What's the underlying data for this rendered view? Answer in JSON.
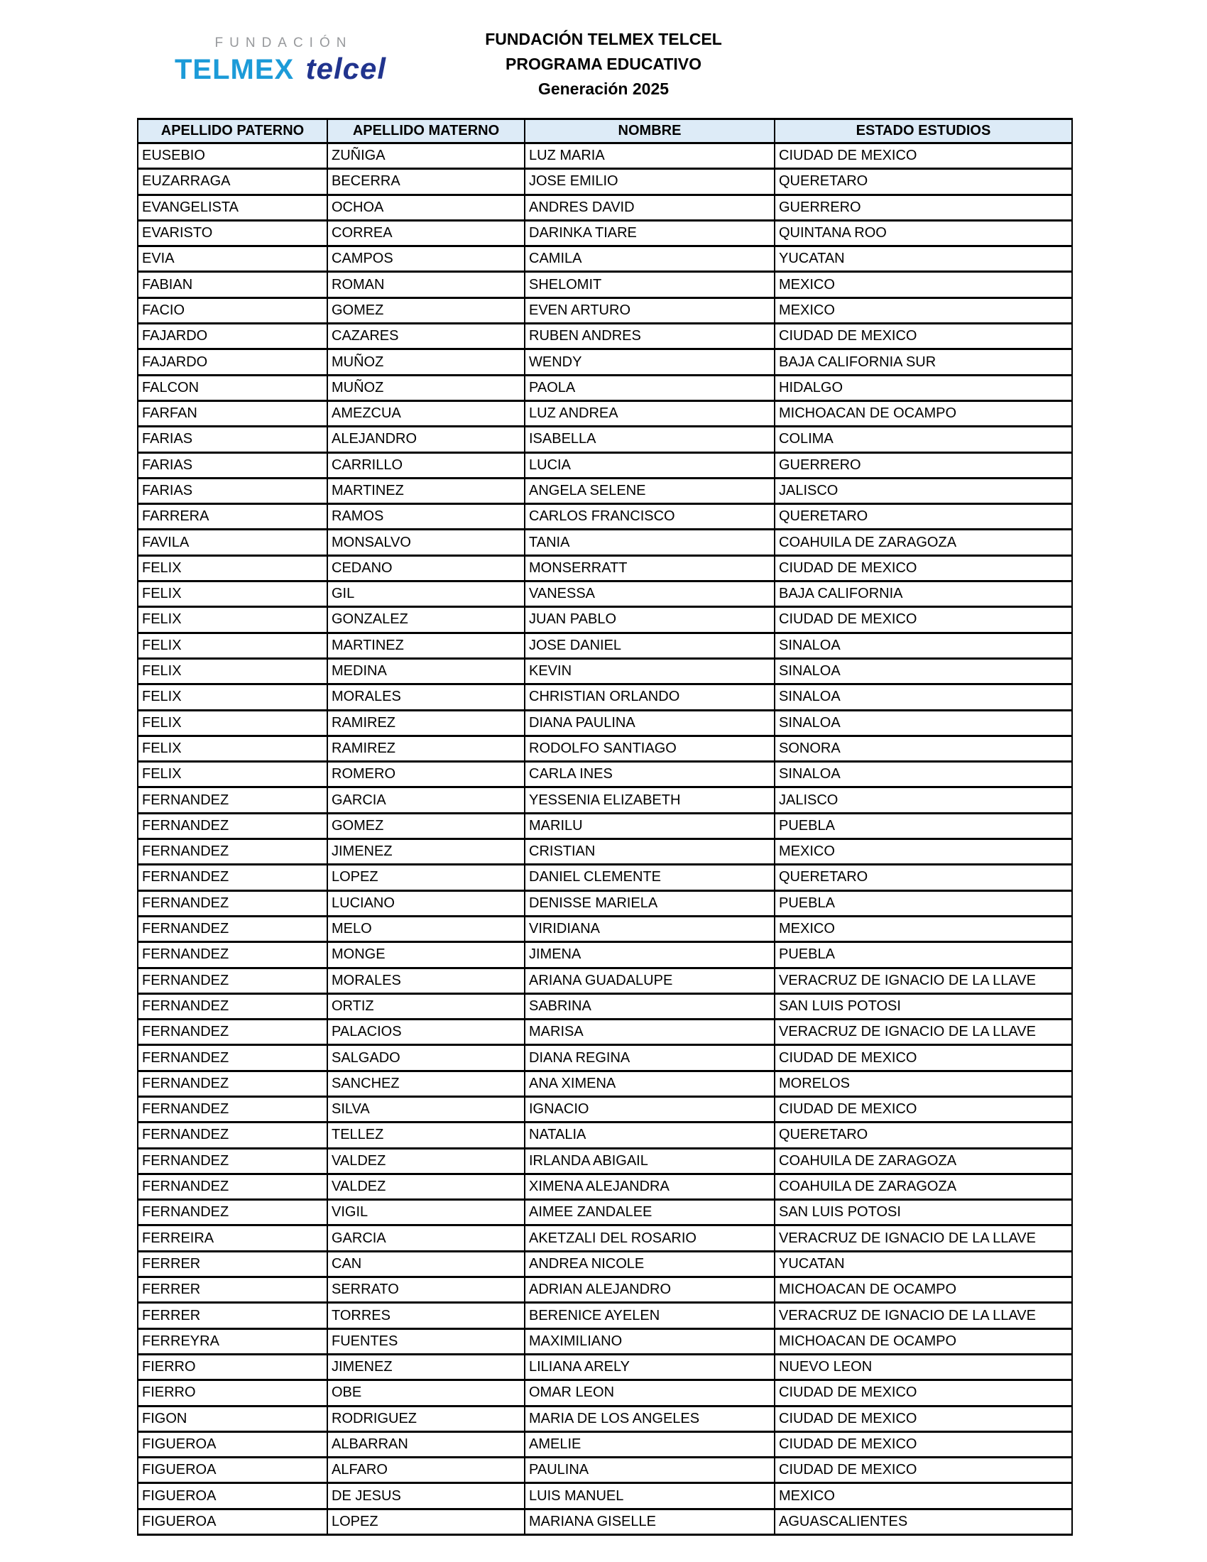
{
  "logo": {
    "fundacion": "FUNDACIÓN",
    "telmex": "TELMEX",
    "telcel": "telcel"
  },
  "titles": {
    "line1": "FUNDACIÓN TELMEX TELCEL",
    "line2": "PROGRAMA EDUCATIVO",
    "line3": "Generación 2025"
  },
  "colors": {
    "header_bg": "#ddebf7",
    "border": "#000000",
    "telmex_blue": "#1c9bd8",
    "telcel_blue": "#21348e",
    "fundacion_gray": "#97999c"
  },
  "table": {
    "columns": [
      "APELLIDO PATERNO",
      "APELLIDO MATERNO",
      "NOMBRE",
      "ESTADO ESTUDIOS"
    ],
    "rows": [
      [
        "EUSEBIO",
        "ZUÑIGA",
        "LUZ MARIA",
        "CIUDAD DE MEXICO"
      ],
      [
        "EUZARRAGA",
        "BECERRA",
        "JOSE EMILIO",
        "QUERETARO"
      ],
      [
        "EVANGELISTA",
        "OCHOA",
        "ANDRES DAVID",
        "GUERRERO"
      ],
      [
        "EVARISTO",
        "CORREA",
        "DARINKA TIARE",
        "QUINTANA ROO"
      ],
      [
        "EVIA",
        "CAMPOS",
        "CAMILA",
        "YUCATAN"
      ],
      [
        "FABIAN",
        "ROMAN",
        "SHELOMIT",
        "MEXICO"
      ],
      [
        "FACIO",
        "GOMEZ",
        "EVEN ARTURO",
        "MEXICO"
      ],
      [
        "FAJARDO",
        "CAZARES",
        "RUBEN ANDRES",
        "CIUDAD DE MEXICO"
      ],
      [
        "FAJARDO",
        "MUÑOZ",
        "WENDY",
        "BAJA CALIFORNIA SUR"
      ],
      [
        "FALCON",
        "MUÑOZ",
        "PAOLA",
        "HIDALGO"
      ],
      [
        "FARFAN",
        "AMEZCUA",
        "LUZ ANDREA",
        "MICHOACAN DE OCAMPO"
      ],
      [
        "FARIAS",
        "ALEJANDRO",
        "ISABELLA",
        "COLIMA"
      ],
      [
        "FARIAS",
        "CARRILLO",
        "LUCIA",
        "GUERRERO"
      ],
      [
        "FARIAS",
        "MARTINEZ",
        "ANGELA SELENE",
        "JALISCO"
      ],
      [
        "FARRERA",
        "RAMOS",
        "CARLOS FRANCISCO",
        "QUERETARO"
      ],
      [
        "FAVILA",
        "MONSALVO",
        "TANIA",
        "COAHUILA DE ZARAGOZA"
      ],
      [
        "FELIX",
        "CEDANO",
        "MONSERRATT",
        "CIUDAD DE MEXICO"
      ],
      [
        "FELIX",
        "GIL",
        "VANESSA",
        "BAJA CALIFORNIA"
      ],
      [
        "FELIX",
        "GONZALEZ",
        "JUAN PABLO",
        "CIUDAD DE MEXICO"
      ],
      [
        "FELIX",
        "MARTINEZ",
        "JOSE DANIEL",
        "SINALOA"
      ],
      [
        "FELIX",
        "MEDINA",
        "KEVIN",
        "SINALOA"
      ],
      [
        "FELIX",
        "MORALES",
        "CHRISTIAN ORLANDO",
        "SINALOA"
      ],
      [
        "FELIX",
        "RAMIREZ",
        "DIANA PAULINA",
        "SINALOA"
      ],
      [
        "FELIX",
        "RAMIREZ",
        "RODOLFO SANTIAGO",
        "SONORA"
      ],
      [
        "FELIX",
        "ROMERO",
        "CARLA INES",
        "SINALOA"
      ],
      [
        "FERNANDEZ",
        "GARCIA",
        "YESSENIA ELIZABETH",
        "JALISCO"
      ],
      [
        "FERNANDEZ",
        "GOMEZ",
        "MARILU",
        "PUEBLA"
      ],
      [
        "FERNANDEZ",
        "JIMENEZ",
        "CRISTIAN",
        "MEXICO"
      ],
      [
        "FERNANDEZ",
        "LOPEZ",
        "DANIEL CLEMENTE",
        "QUERETARO"
      ],
      [
        "FERNANDEZ",
        "LUCIANO",
        "DENISSE MARIELA",
        "PUEBLA"
      ],
      [
        "FERNANDEZ",
        "MELO",
        "VIRIDIANA",
        "MEXICO"
      ],
      [
        "FERNANDEZ",
        "MONGE",
        "JIMENA",
        "PUEBLA"
      ],
      [
        "FERNANDEZ",
        "MORALES",
        "ARIANA GUADALUPE",
        "VERACRUZ DE IGNACIO DE LA LLAVE"
      ],
      [
        "FERNANDEZ",
        "ORTIZ",
        "SABRINA",
        "SAN LUIS POTOSI"
      ],
      [
        "FERNANDEZ",
        "PALACIOS",
        "MARISA",
        "VERACRUZ DE IGNACIO DE LA LLAVE"
      ],
      [
        "FERNANDEZ",
        "SALGADO",
        "DIANA REGINA",
        "CIUDAD DE MEXICO"
      ],
      [
        "FERNANDEZ",
        "SANCHEZ",
        "ANA XIMENA",
        "MORELOS"
      ],
      [
        "FERNANDEZ",
        "SILVA",
        "IGNACIO",
        "CIUDAD DE MEXICO"
      ],
      [
        "FERNANDEZ",
        "TELLEZ",
        "NATALIA",
        "QUERETARO"
      ],
      [
        "FERNANDEZ",
        "VALDEZ",
        "IRLANDA ABIGAIL",
        "COAHUILA DE ZARAGOZA"
      ],
      [
        "FERNANDEZ",
        "VALDEZ",
        "XIMENA ALEJANDRA",
        "COAHUILA DE ZARAGOZA"
      ],
      [
        "FERNANDEZ",
        "VIGIL",
        "AIMEE ZANDALEE",
        "SAN LUIS POTOSI"
      ],
      [
        "FERREIRA",
        "GARCIA",
        "AKETZALI DEL ROSARIO",
        "VERACRUZ DE IGNACIO DE LA LLAVE"
      ],
      [
        "FERRER",
        "CAN",
        "ANDREA NICOLE",
        "YUCATAN"
      ],
      [
        "FERRER",
        "SERRATO",
        "ADRIAN ALEJANDRO",
        "MICHOACAN DE OCAMPO"
      ],
      [
        "FERRER",
        "TORRES",
        "BERENICE AYELEN",
        "VERACRUZ DE IGNACIO DE LA LLAVE"
      ],
      [
        "FERREYRA",
        "FUENTES",
        "MAXIMILIANO",
        "MICHOACAN DE OCAMPO"
      ],
      [
        "FIERRO",
        "JIMENEZ",
        "LILIANA ARELY",
        "NUEVO LEON"
      ],
      [
        "FIERRO",
        "OBE",
        "OMAR LEON",
        "CIUDAD DE MEXICO"
      ],
      [
        "FIGON",
        "RODRIGUEZ",
        "MARIA DE LOS ANGELES",
        "CIUDAD DE MEXICO"
      ],
      [
        "FIGUEROA",
        "ALBARRAN",
        "AMELIE",
        "CIUDAD DE MEXICO"
      ],
      [
        "FIGUEROA",
        "ALFARO",
        "PAULINA",
        "CIUDAD DE MEXICO"
      ],
      [
        "FIGUEROA",
        "DE JESUS",
        "LUIS MANUEL",
        "MEXICO"
      ],
      [
        "FIGUEROA",
        "LOPEZ",
        "MARIANA GISELLE",
        "AGUASCALIENTES"
      ]
    ]
  }
}
